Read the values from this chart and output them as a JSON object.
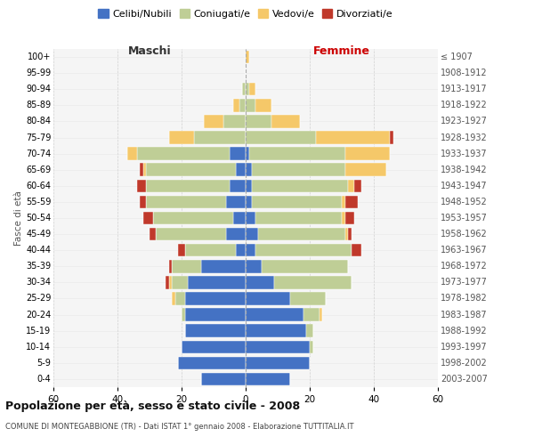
{
  "age_groups": [
    "0-4",
    "5-9",
    "10-14",
    "15-19",
    "20-24",
    "25-29",
    "30-34",
    "35-39",
    "40-44",
    "45-49",
    "50-54",
    "55-59",
    "60-64",
    "65-69",
    "70-74",
    "75-79",
    "80-84",
    "85-89",
    "90-94",
    "95-99",
    "100+"
  ],
  "birth_years": [
    "2003-2007",
    "1998-2002",
    "1993-1997",
    "1988-1992",
    "1983-1987",
    "1978-1982",
    "1973-1977",
    "1968-1972",
    "1963-1967",
    "1958-1962",
    "1953-1957",
    "1948-1952",
    "1943-1947",
    "1938-1942",
    "1933-1937",
    "1928-1932",
    "1923-1927",
    "1918-1922",
    "1913-1917",
    "1908-1912",
    "≤ 1907"
  ],
  "male": {
    "celibe": [
      14,
      21,
      20,
      19,
      19,
      19,
      18,
      14,
      3,
      6,
      4,
      6,
      5,
      3,
      5,
      0,
      0,
      0,
      0,
      0,
      0
    ],
    "coniugato": [
      0,
      0,
      0,
      0,
      1,
      3,
      5,
      9,
      16,
      22,
      25,
      25,
      26,
      28,
      29,
      16,
      7,
      2,
      1,
      0,
      0
    ],
    "vedovo": [
      0,
      0,
      0,
      0,
      0,
      1,
      1,
      0,
      0,
      0,
      0,
      0,
      0,
      1,
      3,
      8,
      6,
      2,
      0,
      0,
      0
    ],
    "divorziato": [
      0,
      0,
      0,
      0,
      0,
      0,
      1,
      1,
      2,
      2,
      3,
      2,
      3,
      1,
      0,
      0,
      0,
      0,
      0,
      0,
      0
    ]
  },
  "female": {
    "nubile": [
      14,
      20,
      20,
      19,
      18,
      14,
      9,
      5,
      3,
      4,
      3,
      2,
      2,
      2,
      1,
      0,
      0,
      0,
      0,
      0,
      0
    ],
    "coniugata": [
      0,
      0,
      1,
      2,
      5,
      11,
      24,
      27,
      30,
      27,
      27,
      28,
      30,
      29,
      30,
      22,
      8,
      3,
      1,
      0,
      0
    ],
    "vedova": [
      0,
      0,
      0,
      0,
      1,
      0,
      0,
      0,
      0,
      1,
      1,
      1,
      2,
      13,
      14,
      23,
      9,
      5,
      2,
      0,
      1
    ],
    "divorziata": [
      0,
      0,
      0,
      0,
      0,
      0,
      0,
      0,
      3,
      1,
      3,
      4,
      2,
      0,
      0,
      1,
      0,
      0,
      0,
      0,
      0
    ]
  },
  "colors": {
    "celibe": "#4472C4",
    "coniugato": "#BFCE96",
    "vedovo": "#F5C869",
    "divorziato": "#C0392B"
  },
  "title": "Popolazione per età, sesso e stato civile - 2008",
  "subtitle": "COMUNE DI MONTEGABBIONE (TR) - Dati ISTAT 1° gennaio 2008 - Elaborazione TUTTITALIA.IT",
  "xlabel_left": "Maschi",
  "xlabel_right": "Femmine",
  "ylabel_left": "Fasce di età",
  "xlim": 60,
  "bg_color": "#ffffff",
  "grid_color": "#cccccc",
  "legend_labels": [
    "Celibi/Nubili",
    "Coniugati/e",
    "Vedovi/e",
    "Divorziati/e"
  ]
}
